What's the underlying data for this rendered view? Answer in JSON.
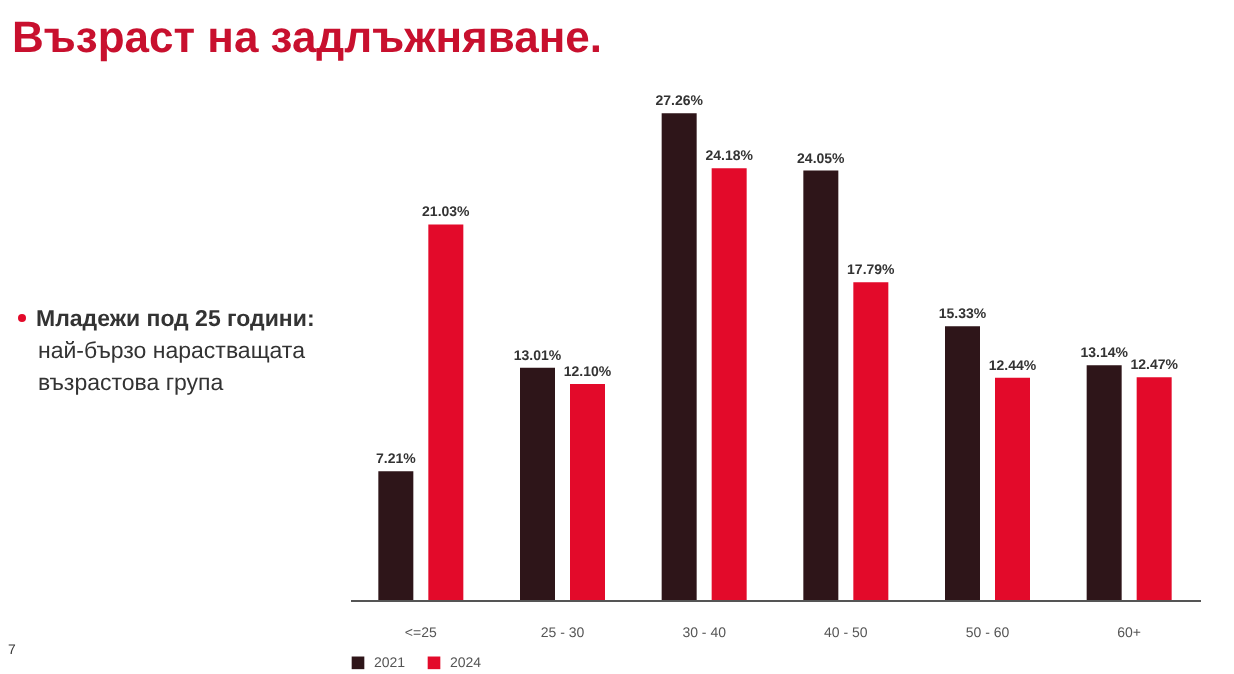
{
  "chart_data": {
    "type": "bar",
    "title": "Възраст на задлъжняване.",
    "annotations": [
      "Младежи под 25 години:",
      "най-бързо нарастващата възрастова група",
      "7"
    ],
    "categories": [
      "<=25",
      "25 - 30",
      "30 - 40",
      "40 - 50",
      "50 - 60",
      "60+"
    ],
    "series": [
      {
        "name": "2021",
        "color": "#2e1519",
        "values": [
          7.21,
          13.01,
          27.26,
          24.05,
          15.33,
          13.14
        ],
        "value_labels": [
          "7.21%",
          "13.01%",
          "27.26%",
          "24.05%",
          "15.33%",
          "13.14%"
        ]
      },
      {
        "name": "2024",
        "color": "#e30a2a",
        "values": [
          21.03,
          12.1,
          24.18,
          17.79,
          12.44,
          12.47
        ],
        "value_labels": [
          "21.03%",
          "12.10%",
          "24.18%",
          "17.79%",
          "12.44%",
          "12.47%"
        ]
      }
    ],
    "legend": "bottom"
  }
}
